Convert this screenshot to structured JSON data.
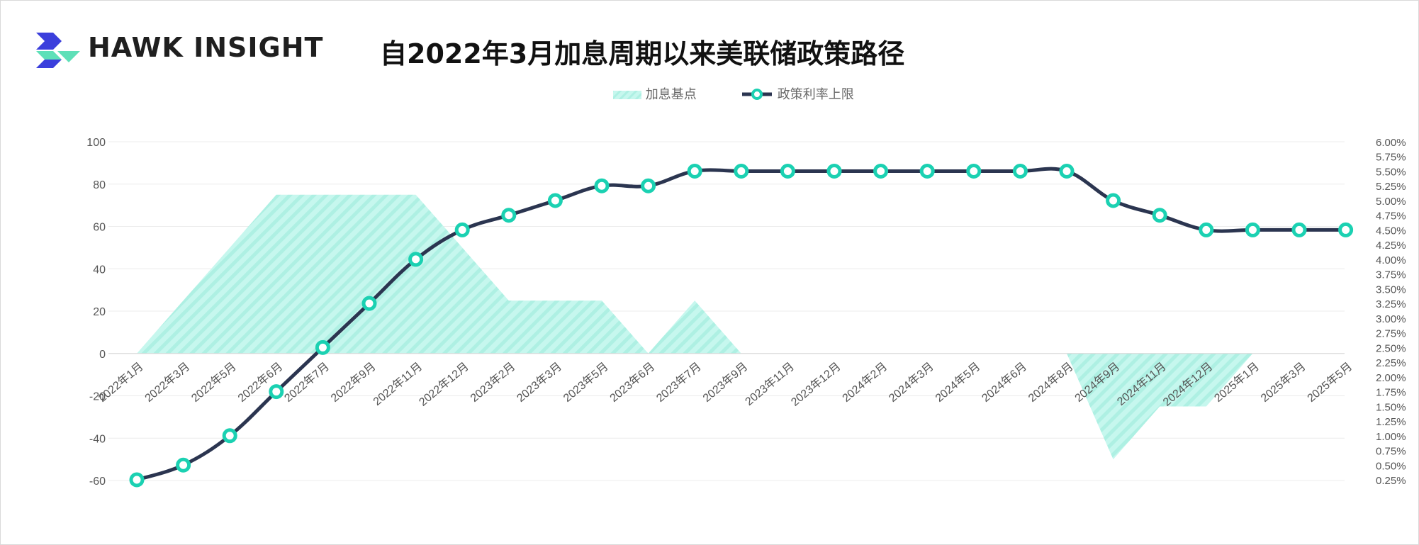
{
  "brand": {
    "name": "HAWK INSIGHT",
    "logo_icon": "hawk-insight-logo-icon",
    "logo_colors": [
      "#3b3fdc",
      "#5ee0b8"
    ]
  },
  "title": "自2022年3月加息周期以来美联储政策路径",
  "legend": {
    "area_label": "加息基点",
    "line_label": "政策利率上限"
  },
  "colors": {
    "area_fill": "#c6f7ee",
    "area_stripe": "#aef0e3",
    "line": "#2b3550",
    "marker": "#1bd1b2",
    "grid": "#ececec",
    "text": "#555555"
  },
  "chart_data": {
    "type": "line",
    "title": "自2022年3月加息周期以来美联储政策路径",
    "categories": [
      "2022年1月",
      "2022年3月",
      "2022年5月",
      "2022年6月",
      "2022年7月",
      "2022年9月",
      "2022年11月",
      "2022年12月",
      "2023年2月",
      "2023年3月",
      "2023年5月",
      "2023年6月",
      "2023年7月",
      "2023年9月",
      "2023年11月",
      "2023年12月",
      "2024年2月",
      "2024年3月",
      "2024年5月",
      "2024年6月",
      "2024年8月",
      "2024年9月",
      "2024年11月",
      "2024年12月",
      "2025年1月",
      "2025年3月",
      "2025年5月"
    ],
    "series": [
      {
        "name": "加息基点",
        "kind": "area",
        "axis": "left",
        "values": [
          0,
          25,
          50,
          75,
          75,
          75,
          75,
          50,
          25,
          25,
          25,
          0,
          25,
          0,
          0,
          0,
          0,
          0,
          0,
          0,
          0,
          -50,
          -25,
          -25,
          0,
          0,
          0
        ]
      },
      {
        "name": "政策利率上限",
        "kind": "line",
        "axis": "right",
        "values": [
          0.25,
          0.5,
          1.0,
          1.75,
          2.5,
          3.25,
          4.0,
          4.5,
          4.75,
          5.0,
          5.25,
          5.25,
          5.5,
          5.5,
          5.5,
          5.5,
          5.5,
          5.5,
          5.5,
          5.5,
          5.5,
          5.0,
          4.75,
          4.5,
          4.5,
          4.5,
          4.5
        ]
      }
    ],
    "y_left": {
      "ticks": [
        "100",
        "80",
        "60",
        "40",
        "20",
        "0",
        "-20",
        "-40",
        "-60"
      ],
      "range": [
        -60,
        100
      ]
    },
    "y_right": {
      "ticks": [
        "6.00%",
        "5.75%",
        "5.50%",
        "5.25%",
        "5.00%",
        "4.75%",
        "4.50%",
        "4.25%",
        "4.00%",
        "3.75%",
        "3.50%",
        "3.25%",
        "3.00%",
        "2.75%",
        "2.50%",
        "2.25%",
        "2.00%",
        "1.75%",
        "1.50%",
        "1.25%",
        "1.00%",
        "0.75%",
        "0.50%",
        "0.25%"
      ],
      "range": [
        0.25,
        6.0
      ]
    },
    "grid": true,
    "legend_position": "top-center"
  }
}
